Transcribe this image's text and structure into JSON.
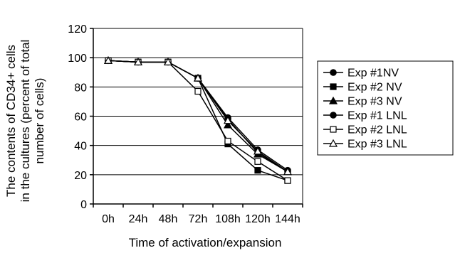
{
  "chart_data": {
    "type": "line",
    "categories": [
      "0h",
      "24h",
      "48h",
      "72h",
      "108h",
      "120h",
      "144h"
    ],
    "xlabel": "Time of activation/expansion",
    "ylabel_lines": [
      "The contents of CD34+ cells",
      "in the cultures (percent of total",
      "number of cells)"
    ],
    "ylim": [
      0,
      120
    ],
    "yticks": [
      "0",
      "20",
      "40",
      "60",
      "80",
      "100",
      "120"
    ],
    "grid": "horizontal",
    "legend_position": "right",
    "series": [
      {
        "name": "Exp #1NV",
        "marker": "circle-filled",
        "values": [
          98,
          97,
          97,
          86,
          59,
          37,
          23
        ]
      },
      {
        "name": "Exp #2 NV",
        "marker": "square-filled",
        "values": [
          98,
          97,
          97,
          86,
          41,
          23,
          16
        ]
      },
      {
        "name": "Exp #3 NV",
        "marker": "triangle-filled",
        "values": [
          98,
          97,
          97,
          86,
          54,
          34,
          22
        ]
      },
      {
        "name": "Exp #1 LNL",
        "marker": "circle-filled",
        "values": [
          98,
          97,
          97,
          86,
          58,
          35,
          22
        ]
      },
      {
        "name": "Exp #2 LNL",
        "marker": "square-open",
        "values": [
          98,
          97,
          97,
          77,
          43,
          29,
          16
        ]
      },
      {
        "name": "Exp #3 LNL",
        "marker": "triangle-open",
        "values": [
          98,
          97,
          97,
          86,
          57,
          36,
          22
        ]
      }
    ]
  }
}
